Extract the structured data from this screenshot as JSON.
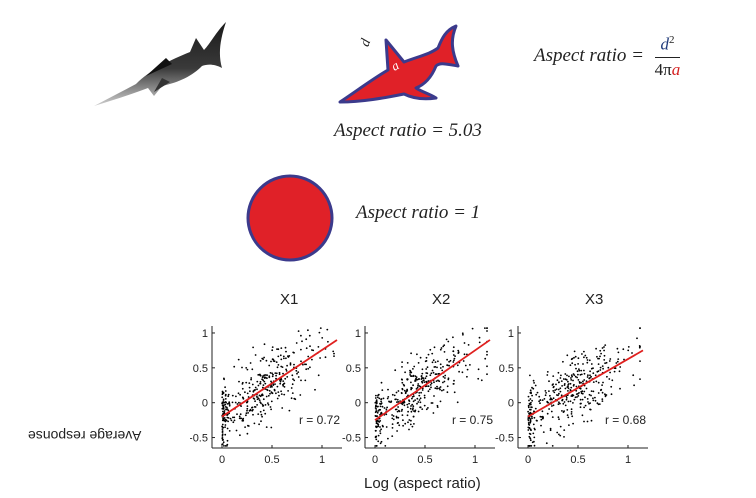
{
  "formula": {
    "lhs": "Aspect ratio =",
    "numerator_var": "d",
    "numerator_exp": "2",
    "denominator_prefix": "4π",
    "denominator_var": "a"
  },
  "shark_labels": {
    "d": "d",
    "a": "a"
  },
  "fish_result": "Aspect ratio = 5.03",
  "circle_result": "Aspect ratio = 1",
  "colors": {
    "shape_fill": "#e02128",
    "shape_stroke": "#3b3a8c",
    "fit_line": "#e0201f",
    "points": "#000000"
  },
  "icons": [
    "marlin-image",
    "shark-silhouette-icon",
    "circle-shape-icon"
  ],
  "chart_data": [
    {
      "type": "scatter",
      "title": "X1",
      "xlim": [
        -0.1,
        1.2
      ],
      "ylim": [
        -0.65,
        1.1
      ],
      "xticks": [
        "0",
        "0.5",
        "1"
      ],
      "yticks": [
        "-0.5",
        "0",
        "0.5",
        "1"
      ],
      "fit": {
        "x": [
          0,
          1.15
        ],
        "y": [
          -0.2,
          0.9
        ]
      },
      "r_label": "r = 0.72"
    },
    {
      "type": "scatter",
      "title": "X2",
      "xlim": [
        -0.1,
        1.2
      ],
      "ylim": [
        -0.65,
        1.1
      ],
      "xticks": [
        "0",
        "0.5",
        "1"
      ],
      "yticks": [
        "-0.5",
        "0",
        "0.5",
        "1"
      ],
      "fit": {
        "x": [
          0,
          1.15
        ],
        "y": [
          -0.25,
          0.9
        ]
      },
      "r_label": "r = 0.75"
    },
    {
      "type": "scatter",
      "title": "X3",
      "xlim": [
        -0.1,
        1.2
      ],
      "ylim": [
        -0.65,
        1.1
      ],
      "xticks": [
        "0",
        "0.5",
        "1"
      ],
      "yticks": [
        "-0.5",
        "0",
        "0.5",
        "1"
      ],
      "fit": {
        "x": [
          0,
          1.15
        ],
        "y": [
          -0.2,
          0.75
        ]
      },
      "r_label": "r = 0.68"
    }
  ],
  "axis_labels": {
    "y": "Average response",
    "x": "Log (aspect ratio)"
  }
}
